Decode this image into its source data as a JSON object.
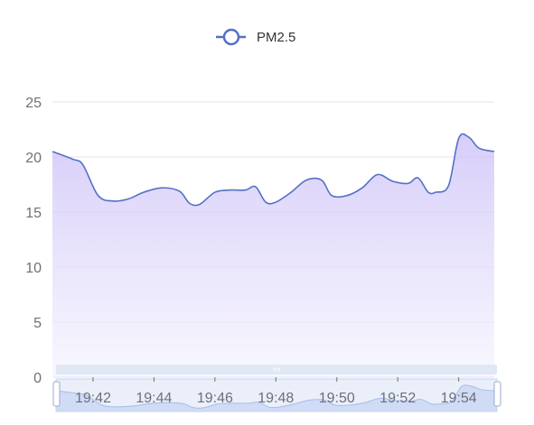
{
  "chart_data": {
    "type": "area",
    "legend": {
      "placement": "top-center",
      "entries": [
        "PM2.5"
      ]
    },
    "x_tick_labels": [
      "19:42",
      "19:44",
      "19:46",
      "19:48",
      "19:50",
      "19:52",
      "19:54"
    ],
    "y_tick_labels": [
      "0",
      "5",
      "10",
      "15",
      "20",
      "25"
    ],
    "ylim": [
      0,
      25
    ],
    "grid": "horizontal",
    "series": [
      {
        "name": "PM2.5",
        "x": [
          "19:40:40",
          "19:41:20",
          "19:41:40",
          "19:42:10",
          "19:42:40",
          "19:43:10",
          "19:43:40",
          "19:44:15",
          "19:44:50",
          "19:45:10",
          "19:45:30",
          "19:46:00",
          "19:46:30",
          "19:47:00",
          "19:47:20",
          "19:47:40",
          "19:48:00",
          "19:48:30",
          "19:49:00",
          "19:49:30",
          "19:49:50",
          "19:50:20",
          "19:50:50",
          "19:51:20",
          "19:51:50",
          "19:52:20",
          "19:52:40",
          "19:53:00",
          "19:53:15",
          "19:53:40",
          "19:54:00",
          "19:54:20",
          "19:54:40",
          "19:55:10"
        ],
        "values": [
          20.5,
          19.8,
          19.3,
          16.5,
          16.0,
          16.2,
          16.8,
          17.2,
          16.9,
          15.8,
          15.7,
          16.8,
          17.0,
          17.0,
          17.3,
          15.9,
          15.9,
          16.8,
          17.9,
          17.9,
          16.5,
          16.5,
          17.2,
          18.4,
          17.8,
          17.6,
          18.1,
          16.8,
          16.8,
          17.4,
          21.7,
          21.8,
          20.8,
          20.5
        ]
      }
    ],
    "colors": {
      "line": "#5470c6",
      "area_top": "#c9bdf7",
      "area_bottom": "#f4f1fe",
      "grid": "#e0e6f1",
      "axis_text": "#6e7079",
      "legend_text": "#333333",
      "slider_fill": "#d8e2f6",
      "slider_border": "#c7d3ee",
      "slider_handle": "#ffffff"
    },
    "dataZoom": {
      "start_percent": 0,
      "end_percent": 100
    }
  }
}
